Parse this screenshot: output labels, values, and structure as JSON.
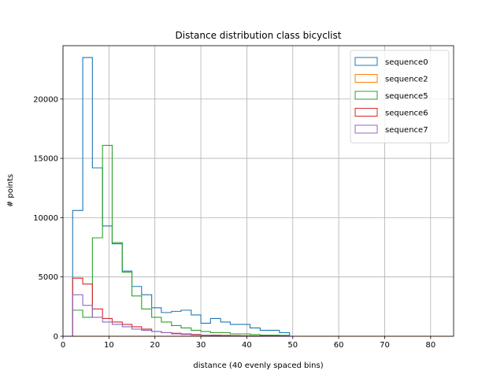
{
  "chart_data": {
    "type": "histogram-step",
    "title": "Distance distribution class bicyclist",
    "xlabel": "distance (40 evenly spaced bins)",
    "ylabel": "# points",
    "xlim": [
      0,
      85
    ],
    "ylim": [
      0,
      24500
    ],
    "xticks": [
      0,
      10,
      20,
      30,
      40,
      50,
      60,
      70,
      80
    ],
    "yticks": [
      0,
      5000,
      10000,
      15000,
      20000
    ],
    "grid": true,
    "legend_position": "top-right",
    "series": [
      {
        "name": "sequence0",
        "color": "#1f77b4",
        "edges": [
          0,
          2.1,
          4.3,
          6.4,
          8.6,
          10.7,
          12.9,
          15.0,
          17.1,
          19.3,
          21.4,
          23.6,
          25.7,
          27.9,
          30.0,
          32.1,
          34.3,
          36.4,
          38.6,
          40.7,
          42.9,
          45.0,
          47.1,
          49.3,
          50.4
        ],
        "values": [
          0,
          10600,
          23500,
          14200,
          9300,
          7800,
          5500,
          4200,
          3500,
          2400,
          2000,
          2100,
          2200,
          1800,
          1100,
          1500,
          1200,
          1000,
          1000,
          700,
          500,
          500,
          300,
          0
        ]
      },
      {
        "name": "sequence2",
        "color": "#ff7f0e",
        "edges": [
          0,
          85
        ],
        "values": [
          0
        ]
      },
      {
        "name": "sequence5",
        "color": "#2ca02c",
        "edges": [
          0,
          2.1,
          4.3,
          6.4,
          8.6,
          10.7,
          12.9,
          15.0,
          17.1,
          19.3,
          21.4,
          23.6,
          25.7,
          27.9,
          30.0,
          32.1,
          34.3,
          36.4,
          38.6,
          40.7,
          42.9,
          45.0,
          47.1,
          49.3,
          50.4
        ],
        "values": [
          0,
          2200,
          1600,
          8300,
          16100,
          7900,
          5400,
          3400,
          2300,
          1600,
          1200,
          900,
          700,
          500,
          400,
          300,
          300,
          200,
          200,
          150,
          100,
          100,
          80,
          0
        ]
      },
      {
        "name": "sequence6",
        "color": "#d62728",
        "edges": [
          0,
          2.1,
          4.3,
          6.4,
          8.6,
          10.7,
          12.9,
          15.0,
          17.1,
          19.3,
          21.4,
          23.6,
          25.7,
          27.9,
          30.0,
          32.1,
          34.3,
          36.4,
          38.6,
          40.7,
          42.9,
          45.0,
          47.1,
          49.3,
          50.4
        ],
        "values": [
          0,
          4900,
          4400,
          2300,
          1500,
          1200,
          1000,
          800,
          600,
          400,
          300,
          250,
          200,
          150,
          100,
          100,
          80,
          60,
          50,
          40,
          30,
          20,
          10,
          0
        ]
      },
      {
        "name": "sequence7",
        "color": "#9467bd",
        "edges": [
          0,
          2.1,
          4.3,
          6.4,
          8.6,
          10.7,
          12.9,
          15.0,
          17.1,
          19.3,
          21.4,
          23.6,
          25.7,
          27.9,
          30.0,
          32.1,
          34.3,
          36.4,
          38.6,
          40.7,
          42.9,
          45.0,
          47.1,
          49.3,
          50.4
        ],
        "values": [
          0,
          3500,
          2600,
          1600,
          1200,
          1000,
          800,
          600,
          500,
          400,
          300,
          200,
          150,
          100,
          80,
          60,
          50,
          40,
          30,
          20,
          10,
          10,
          5,
          0
        ]
      }
    ]
  }
}
